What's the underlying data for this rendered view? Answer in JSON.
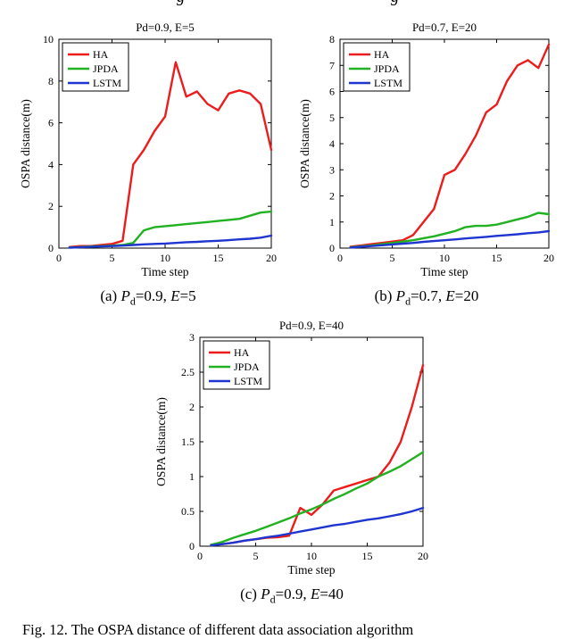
{
  "page": {
    "figure_caption": "Fig. 12. The OSPA distance of different data association algorithm",
    "top_fragments": {
      "left": "g",
      "right": "g"
    }
  },
  "colors": {
    "ha": "#ed1c1c",
    "jpda": "#22b122",
    "lstm": "#1f35cf",
    "axis": "#000000"
  },
  "chart_data": [
    {
      "type": "line",
      "title": "Pd=0.9, E=5",
      "xlabel": "Time step",
      "ylabel": "OSPA distance(m)",
      "xlim": [
        0,
        20
      ],
      "ylim": [
        0,
        10
      ],
      "xticks": [
        0,
        5,
        10,
        15,
        20
      ],
      "yticks": [
        0,
        2,
        4,
        6,
        8,
        10
      ],
      "grid": false,
      "legend_position": "top-left",
      "x": [
        1,
        2,
        3,
        4,
        5,
        6,
        7,
        8,
        9,
        10,
        11,
        12,
        13,
        14,
        15,
        16,
        17,
        18,
        19,
        20
      ],
      "series": [
        {
          "name": "HA",
          "color": "#ed1c1c",
          "values": [
            0.05,
            0.1,
            0.1,
            0.15,
            0.2,
            0.35,
            4.0,
            4.7,
            5.6,
            6.3,
            8.9,
            7.25,
            7.5,
            6.9,
            6.6,
            7.4,
            7.55,
            7.4,
            6.9,
            4.7
          ]
        },
        {
          "name": "JPDA",
          "color": "#22b122",
          "values": [
            0.03,
            0.05,
            0.08,
            0.1,
            0.12,
            0.15,
            0.25,
            0.85,
            1.0,
            1.05,
            1.1,
            1.15,
            1.2,
            1.25,
            1.3,
            1.35,
            1.4,
            1.55,
            1.7,
            1.75
          ]
        },
        {
          "name": "LSTM",
          "color": "#1f35cf",
          "values": [
            0.02,
            0.04,
            0.06,
            0.08,
            0.1,
            0.12,
            0.15,
            0.18,
            0.2,
            0.22,
            0.25,
            0.28,
            0.3,
            0.33,
            0.35,
            0.38,
            0.42,
            0.45,
            0.5,
            0.6
          ]
        }
      ],
      "caption": {
        "idx": "(a) ",
        "P": "P",
        "sub": "d",
        "mid": "=0.9, ",
        "E": "E",
        "tail": "=5"
      }
    },
    {
      "type": "line",
      "title": "Pd=0.7, E=20",
      "xlabel": "Time step",
      "ylabel": "OSPA distance(m)",
      "xlim": [
        0,
        20
      ],
      "ylim": [
        0,
        8
      ],
      "xticks": [
        0,
        5,
        10,
        15,
        20
      ],
      "yticks": [
        0,
        1,
        2,
        3,
        4,
        5,
        6,
        7,
        8
      ],
      "grid": false,
      "legend_position": "top-left",
      "x": [
        1,
        2,
        3,
        4,
        5,
        6,
        7,
        8,
        9,
        10,
        11,
        12,
        13,
        14,
        15,
        16,
        17,
        18,
        19,
        20
      ],
      "series": [
        {
          "name": "HA",
          "color": "#ed1c1c",
          "values": [
            0.05,
            0.1,
            0.15,
            0.2,
            0.25,
            0.3,
            0.5,
            1.0,
            1.5,
            2.8,
            3.0,
            3.6,
            4.3,
            5.2,
            5.5,
            6.4,
            7.0,
            7.2,
            6.9,
            7.8
          ]
        },
        {
          "name": "JPDA",
          "color": "#22b122",
          "values": [
            0.03,
            0.07,
            0.1,
            0.15,
            0.2,
            0.25,
            0.3,
            0.38,
            0.45,
            0.55,
            0.65,
            0.8,
            0.85,
            0.85,
            0.9,
            1.0,
            1.1,
            1.2,
            1.35,
            1.3
          ]
        },
        {
          "name": "LSTM",
          "color": "#1f35cf",
          "values": [
            0.02,
            0.05,
            0.08,
            0.11,
            0.14,
            0.17,
            0.2,
            0.24,
            0.27,
            0.3,
            0.33,
            0.37,
            0.4,
            0.43,
            0.47,
            0.5,
            0.53,
            0.57,
            0.6,
            0.65
          ]
        }
      ],
      "caption": {
        "idx": "(b) ",
        "P": "P",
        "sub": "d",
        "mid": "=0.7, ",
        "E": "E",
        "tail": "=20"
      }
    },
    {
      "type": "line",
      "title": "Pd=0.9, E=40",
      "xlabel": "Time step",
      "ylabel": "OSPA distance(m)",
      "xlim": [
        0,
        20
      ],
      "ylim": [
        0,
        3
      ],
      "xticks": [
        0,
        5,
        10,
        15,
        20
      ],
      "yticks": [
        0,
        0.5,
        1,
        1.5,
        2,
        2.5,
        3
      ],
      "grid": false,
      "legend_position": "top-left",
      "x": [
        1,
        2,
        3,
        4,
        5,
        6,
        7,
        8,
        9,
        10,
        11,
        12,
        13,
        14,
        15,
        16,
        17,
        18,
        19,
        20
      ],
      "series": [
        {
          "name": "HA",
          "color": "#ed1c1c",
          "values": [
            0.02,
            0.03,
            0.05,
            0.08,
            0.1,
            0.12,
            0.13,
            0.15,
            0.55,
            0.45,
            0.6,
            0.8,
            0.85,
            0.9,
            0.95,
            1.0,
            1.2,
            1.5,
            2.0,
            2.6
          ]
        },
        {
          "name": "JPDA",
          "color": "#22b122",
          "values": [
            0.02,
            0.06,
            0.12,
            0.17,
            0.22,
            0.28,
            0.34,
            0.4,
            0.47,
            0.53,
            0.6,
            0.68,
            0.75,
            0.83,
            0.9,
            1.0,
            1.07,
            1.15,
            1.25,
            1.35
          ]
        },
        {
          "name": "LSTM",
          "color": "#1f35cf",
          "values": [
            0.01,
            0.03,
            0.05,
            0.08,
            0.1,
            0.13,
            0.15,
            0.18,
            0.21,
            0.24,
            0.27,
            0.3,
            0.32,
            0.35,
            0.38,
            0.4,
            0.43,
            0.46,
            0.5,
            0.55
          ]
        }
      ],
      "caption": {
        "idx": "(c) ",
        "P": "P",
        "sub": "d",
        "mid": "=0.9, ",
        "E": "E",
        "tail": "=40"
      }
    }
  ]
}
